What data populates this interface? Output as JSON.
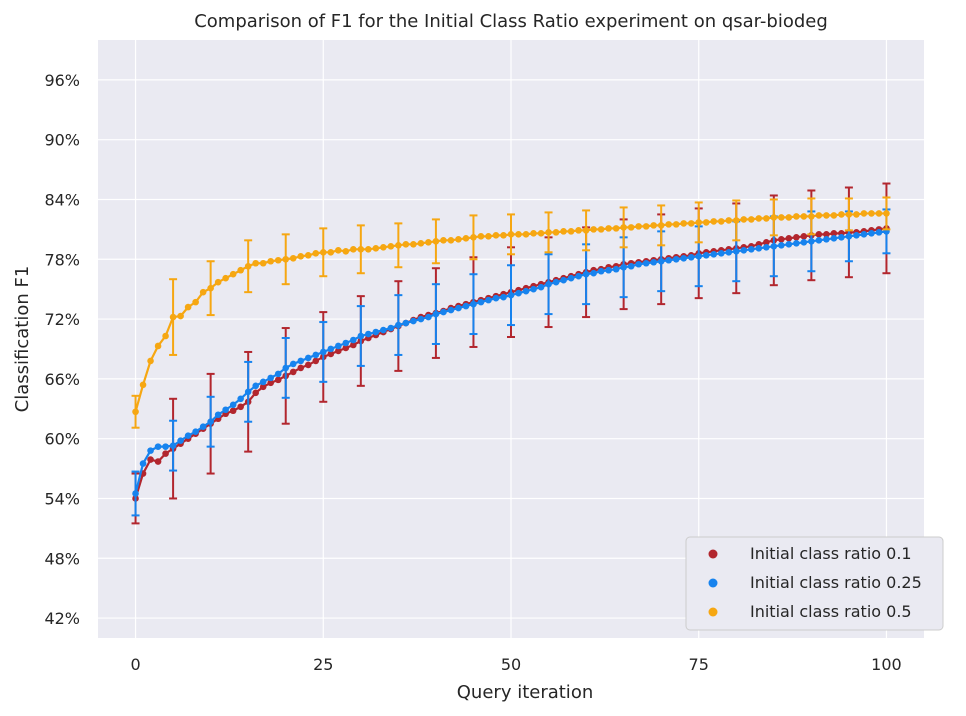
{
  "chart_data": {
    "type": "line",
    "title": "Comparison of F1 for the Initial Class Ratio experiment on qsar-biodeg",
    "xlabel": "Query iteration",
    "ylabel": "Classification F1",
    "xlim": [
      -5,
      105
    ],
    "ylim": [
      0.4,
      1.0
    ],
    "x_ticks": [
      0,
      25,
      50,
      75,
      100
    ],
    "y_ticks": [
      0.42,
      0.48,
      0.54,
      0.6,
      0.66,
      0.72,
      0.78,
      0.84,
      0.9,
      0.96
    ],
    "y_tick_labels": [
      "42%",
      "48%",
      "54%",
      "60%",
      "66%",
      "72%",
      "78%",
      "84%",
      "90%",
      "96%"
    ],
    "grid": true,
    "legend_position": "lower-right",
    "x_points": [
      0,
      1,
      2,
      3,
      4,
      5,
      6,
      7,
      8,
      9,
      10,
      11,
      12,
      13,
      14,
      15,
      16,
      17,
      18,
      19,
      20,
      21,
      22,
      23,
      24,
      25,
      26,
      27,
      28,
      29,
      30,
      31,
      32,
      33,
      34,
      35,
      36,
      37,
      38,
      39,
      40,
      41,
      42,
      43,
      44,
      45,
      46,
      47,
      48,
      49,
      50,
      51,
      52,
      53,
      54,
      55,
      56,
      57,
      58,
      59,
      60,
      61,
      62,
      63,
      64,
      65,
      66,
      67,
      68,
      69,
      70,
      71,
      72,
      73,
      74,
      75,
      76,
      77,
      78,
      79,
      80,
      81,
      82,
      83,
      84,
      85,
      86,
      87,
      88,
      89,
      90,
      91,
      92,
      93,
      94,
      95,
      96,
      97,
      98,
      99,
      100
    ],
    "series": [
      {
        "name": "Initial class ratio 0.1",
        "color": "#b2262e",
        "values": [
          0.54,
          0.565,
          0.579,
          0.577,
          0.585,
          0.59,
          0.595,
          0.6,
          0.605,
          0.61,
          0.615,
          0.62,
          0.625,
          0.628,
          0.632,
          0.637,
          0.646,
          0.652,
          0.656,
          0.659,
          0.663,
          0.667,
          0.671,
          0.674,
          0.678,
          0.682,
          0.685,
          0.688,
          0.691,
          0.694,
          0.698,
          0.701,
          0.704,
          0.707,
          0.71,
          0.713,
          0.716,
          0.719,
          0.722,
          0.724,
          0.726,
          0.728,
          0.731,
          0.733,
          0.735,
          0.737,
          0.739,
          0.741,
          0.743,
          0.745,
          0.747,
          0.749,
          0.751,
          0.753,
          0.755,
          0.757,
          0.759,
          0.761,
          0.763,
          0.765,
          0.767,
          0.769,
          0.77,
          0.772,
          0.773,
          0.775,
          0.776,
          0.777,
          0.778,
          0.779,
          0.78,
          0.781,
          0.782,
          0.783,
          0.784,
          0.786,
          0.787,
          0.788,
          0.789,
          0.79,
          0.791,
          0.792,
          0.793,
          0.795,
          0.797,
          0.799,
          0.8,
          0.801,
          0.802,
          0.803,
          0.804,
          0.805,
          0.805,
          0.806,
          0.806,
          0.807,
          0.807,
          0.808,
          0.809,
          0.81,
          0.811
        ],
        "err_every": 5,
        "err": [
          0.025,
          0.05,
          0.05,
          0.05,
          0.048,
          0.045,
          0.045,
          0.045,
          0.045,
          0.045,
          0.045,
          0.045,
          0.045,
          0.045,
          0.045,
          0.045,
          0.045,
          0.045,
          0.045,
          0.045,
          0.045
        ]
      },
      {
        "name": "Initial class ratio 0.25",
        "color": "#1783ee",
        "values": [
          0.545,
          0.575,
          0.588,
          0.592,
          0.592,
          0.593,
          0.598,
          0.603,
          0.607,
          0.612,
          0.617,
          0.624,
          0.629,
          0.634,
          0.64,
          0.647,
          0.653,
          0.657,
          0.661,
          0.665,
          0.671,
          0.675,
          0.678,
          0.681,
          0.684,
          0.687,
          0.69,
          0.693,
          0.696,
          0.699,
          0.703,
          0.705,
          0.707,
          0.709,
          0.711,
          0.714,
          0.716,
          0.718,
          0.72,
          0.722,
          0.725,
          0.727,
          0.729,
          0.731,
          0.733,
          0.735,
          0.737,
          0.739,
          0.741,
          0.742,
          0.744,
          0.746,
          0.748,
          0.75,
          0.752,
          0.755,
          0.757,
          0.759,
          0.761,
          0.763,
          0.765,
          0.766,
          0.768,
          0.769,
          0.77,
          0.772,
          0.773,
          0.775,
          0.776,
          0.777,
          0.778,
          0.779,
          0.78,
          0.781,
          0.782,
          0.783,
          0.784,
          0.785,
          0.786,
          0.787,
          0.788,
          0.789,
          0.79,
          0.791,
          0.792,
          0.793,
          0.794,
          0.795,
          0.796,
          0.797,
          0.798,
          0.799,
          0.8,
          0.801,
          0.802,
          0.803,
          0.804,
          0.805,
          0.806,
          0.807,
          0.808
        ],
        "err_every": 5,
        "err": [
          0.022,
          0.025,
          0.025,
          0.03,
          0.03,
          0.03,
          0.03,
          0.03,
          0.03,
          0.03,
          0.03,
          0.03,
          0.03,
          0.03,
          0.03,
          0.03,
          0.03,
          0.03,
          0.03,
          0.025,
          0.022
        ]
      },
      {
        "name": "Initial class ratio 0.5",
        "color": "#f6a712",
        "values": [
          0.627,
          0.654,
          0.678,
          0.693,
          0.703,
          0.722,
          0.723,
          0.732,
          0.737,
          0.747,
          0.751,
          0.757,
          0.761,
          0.765,
          0.769,
          0.773,
          0.776,
          0.776,
          0.778,
          0.779,
          0.78,
          0.781,
          0.783,
          0.784,
          0.786,
          0.787,
          0.787,
          0.789,
          0.788,
          0.79,
          0.79,
          0.79,
          0.791,
          0.792,
          0.793,
          0.794,
          0.795,
          0.795,
          0.796,
          0.797,
          0.798,
          0.799,
          0.799,
          0.8,
          0.801,
          0.802,
          0.803,
          0.803,
          0.804,
          0.804,
          0.805,
          0.805,
          0.805,
          0.806,
          0.806,
          0.807,
          0.807,
          0.808,
          0.808,
          0.809,
          0.809,
          0.81,
          0.81,
          0.811,
          0.811,
          0.812,
          0.812,
          0.813,
          0.813,
          0.814,
          0.814,
          0.815,
          0.815,
          0.816,
          0.816,
          0.817,
          0.817,
          0.818,
          0.818,
          0.819,
          0.819,
          0.82,
          0.82,
          0.821,
          0.821,
          0.822,
          0.822,
          0.822,
          0.823,
          0.823,
          0.823,
          0.824,
          0.824,
          0.824,
          0.825,
          0.825,
          0.825,
          0.826,
          0.826,
          0.826,
          0.826
        ],
        "err_every": 5,
        "err": [
          0.016,
          0.038,
          0.027,
          0.026,
          0.025,
          0.024,
          0.024,
          0.022,
          0.022,
          0.022,
          0.02,
          0.02,
          0.02,
          0.02,
          0.02,
          0.02,
          0.02,
          0.018,
          0.018,
          0.016,
          0.016
        ]
      }
    ]
  }
}
